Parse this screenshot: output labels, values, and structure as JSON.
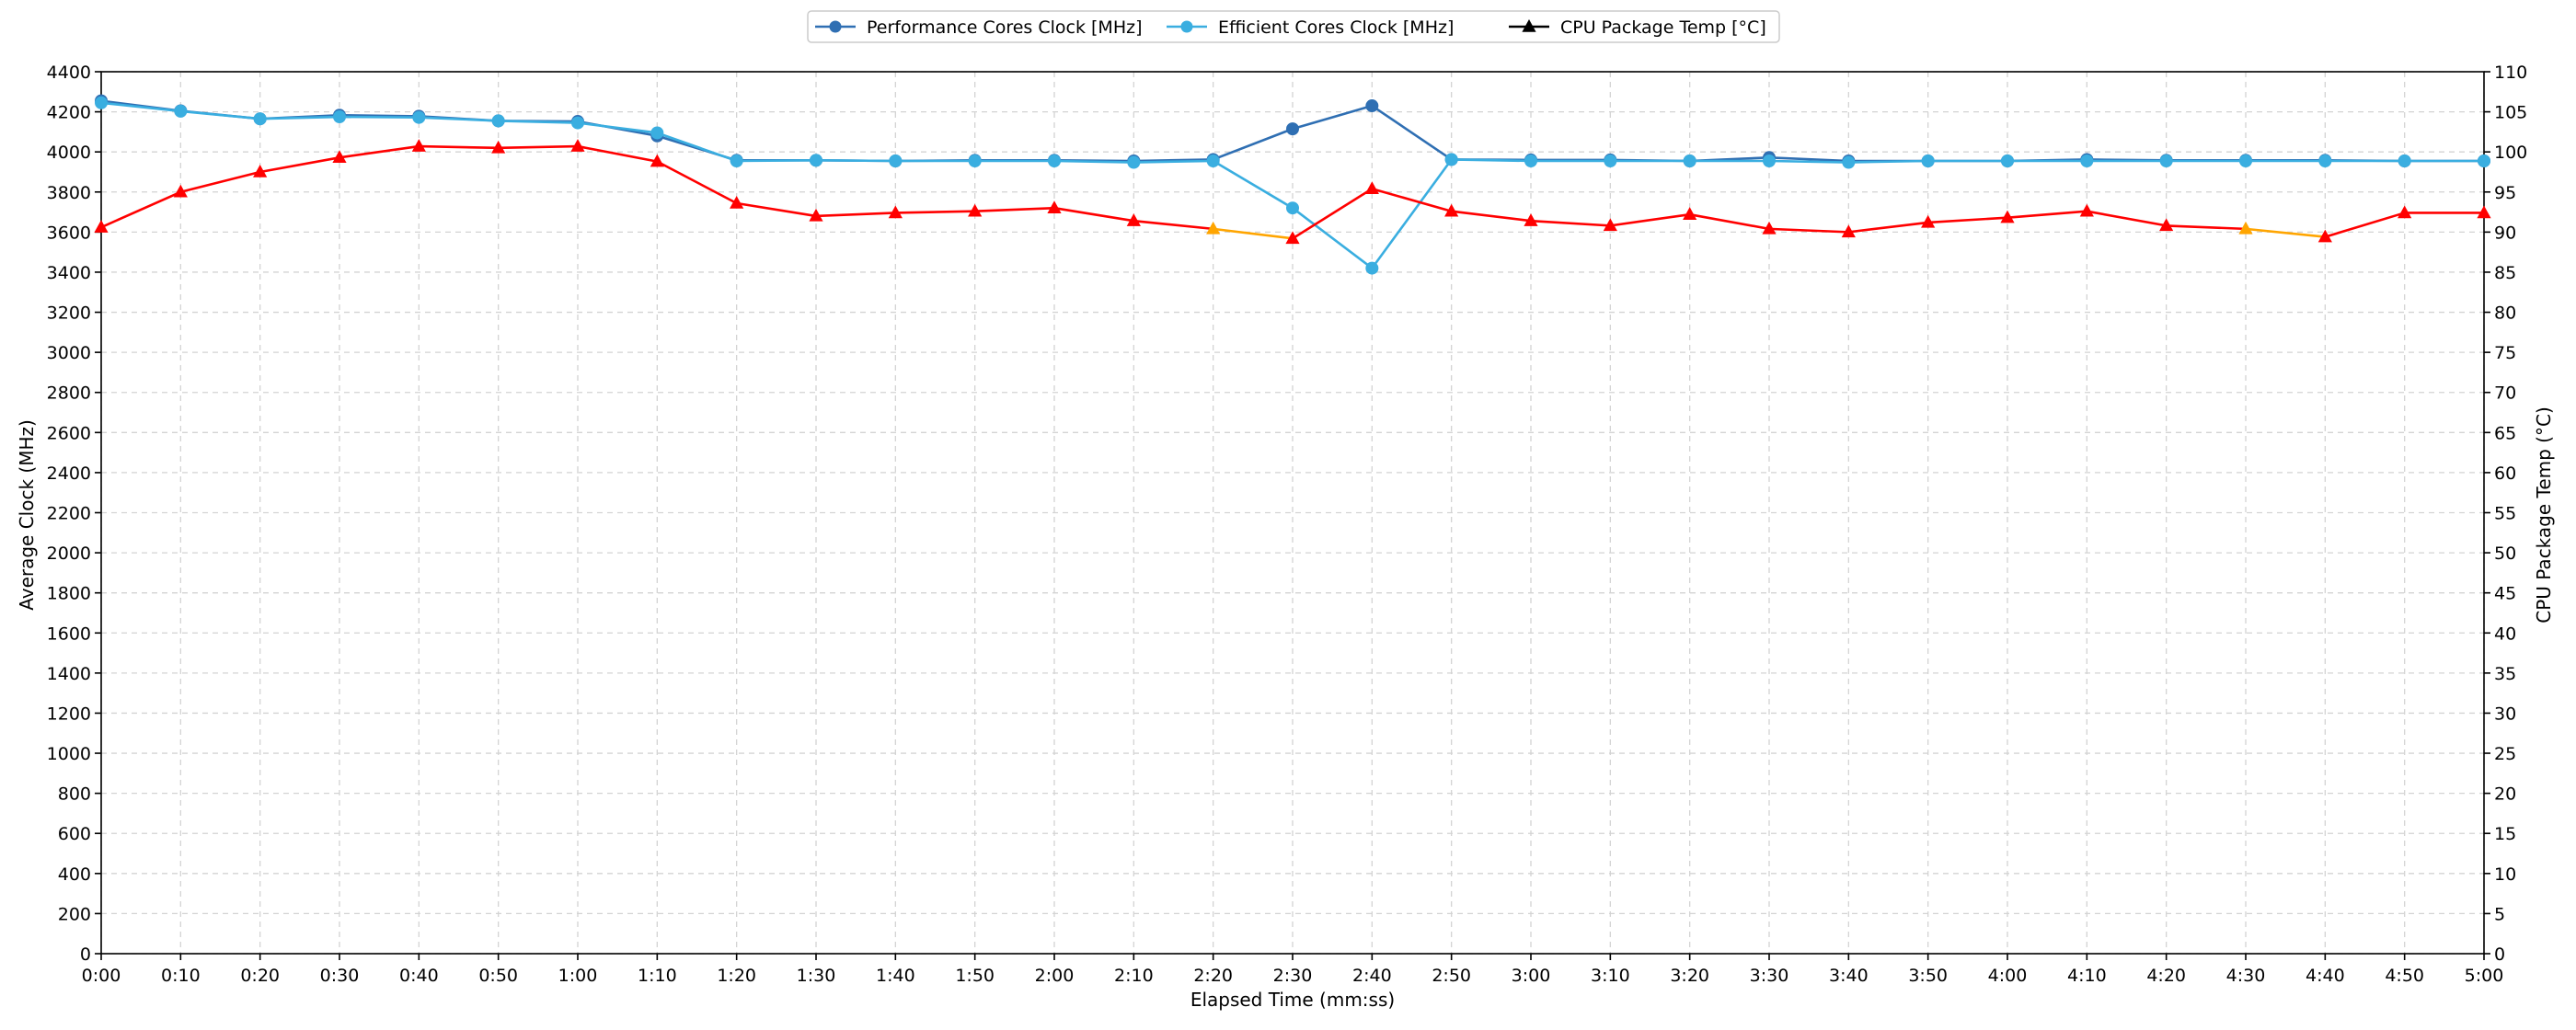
{
  "chart_data": {
    "type": "line",
    "xlabel": "Elapsed Time (mm:ss)",
    "ylabel_left": "Average Clock (MHz)",
    "ylabel_right": "CPU Package Temp (°C)",
    "x": [
      "0:00",
      "0:10",
      "0:20",
      "0:30",
      "0:40",
      "0:50",
      "1:00",
      "1:10",
      "1:20",
      "1:30",
      "1:40",
      "1:50",
      "2:00",
      "2:10",
      "2:20",
      "2:30",
      "2:40",
      "2:50",
      "3:00",
      "3:10",
      "3:20",
      "3:30",
      "3:40",
      "3:50",
      "4:00",
      "4:10",
      "4:20",
      "4:30",
      "4:40",
      "4:50",
      "5:00"
    ],
    "ylim_left": [
      0,
      4400
    ],
    "ylim_right": [
      0,
      110
    ],
    "yticks_left": [
      0,
      200,
      400,
      600,
      800,
      1000,
      1200,
      1400,
      1600,
      1800,
      2000,
      2200,
      2400,
      2600,
      2800,
      3000,
      3200,
      3400,
      3600,
      3800,
      4000,
      4200,
      4400
    ],
    "yticks_right": [
      0,
      5,
      10,
      15,
      20,
      25,
      30,
      35,
      40,
      45,
      50,
      55,
      60,
      65,
      70,
      75,
      80,
      85,
      90,
      95,
      100,
      105,
      110
    ],
    "grid": true,
    "legend_position": "top-center",
    "series": [
      {
        "name": "Performance Cores Clock [MHz]",
        "axis": "left",
        "color": "#2f6fb3",
        "marker": "circle",
        "values": [
          4255,
          4205,
          4165,
          4183,
          4178,
          4155,
          4152,
          4080,
          3958,
          3958,
          3955,
          3958,
          3958,
          3955,
          3962,
          4115,
          4230,
          3962,
          3960,
          3960,
          3955,
          3972,
          3955,
          3955,
          3955,
          3962,
          3958,
          3958,
          3958,
          3955,
          3955
        ]
      },
      {
        "name": "Efficient Cores Clock [MHz]",
        "axis": "left",
        "color": "#3aaee0",
        "marker": "circle",
        "values": [
          4245,
          4203,
          4165,
          4175,
          4172,
          4155,
          4145,
          4095,
          3955,
          3958,
          3955,
          3955,
          3955,
          3948,
          3955,
          3720,
          3420,
          3962,
          3955,
          3955,
          3955,
          3955,
          3948,
          3955,
          3955,
          3955,
          3955,
          3955,
          3955,
          3955,
          3955
        ]
      },
      {
        "name": "CPU Package Temp [°C]",
        "axis": "right",
        "color": "#ff0000",
        "highlight_color": "#ffa500",
        "legend_color": "#000000",
        "marker": "triangle",
        "values": [
          90.6,
          95.0,
          97.5,
          99.3,
          100.7,
          100.5,
          100.7,
          98.8,
          93.6,
          92.0,
          92.4,
          92.6,
          93.0,
          91.4,
          90.4,
          89.2,
          95.4,
          92.6,
          91.4,
          90.8,
          92.2,
          90.4,
          90.0,
          91.2,
          91.8,
          92.6,
          90.8,
          90.4,
          89.4,
          92.4,
          92.4
        ],
        "highlight_indices": [
          14,
          27
        ]
      }
    ]
  }
}
